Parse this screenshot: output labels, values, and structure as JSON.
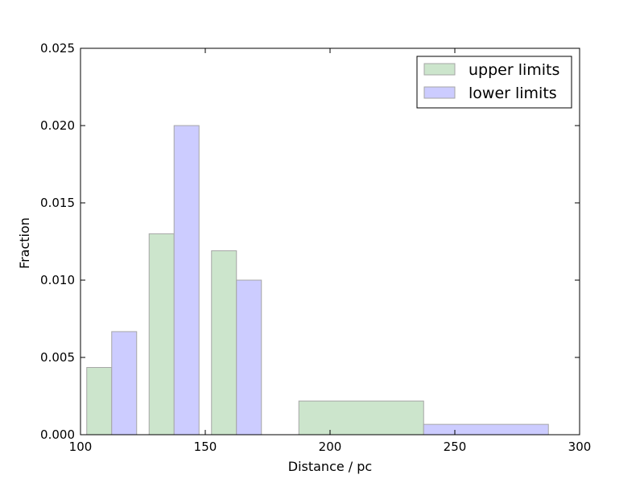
{
  "chart_data": {
    "type": "bar",
    "title": "",
    "xlabel": "Distance / pc",
    "ylabel": "Fraction",
    "xlim": [
      100,
      300
    ],
    "ylim": [
      0,
      0.025
    ],
    "xticks": [
      100,
      150,
      200,
      250,
      300
    ],
    "yticks": [
      0.0,
      0.005,
      0.01,
      0.015,
      0.02,
      0.025
    ],
    "xtick_labels": [
      "100",
      "150",
      "200",
      "250",
      "300"
    ],
    "ytick_labels": [
      "0.000",
      "0.005",
      "0.010",
      "0.015",
      "0.020",
      "0.025"
    ],
    "grid": false,
    "legend_position": "top-right",
    "series": [
      {
        "name": "upper limits",
        "color": "#cce5cc",
        "bins": [
          {
            "x0": 102.5,
            "x1": 112.5,
            "value": 0.00435
          },
          {
            "x0": 127.5,
            "x1": 137.5,
            "value": 0.013
          },
          {
            "x0": 152.5,
            "x1": 162.5,
            "value": 0.0119
          },
          {
            "x0": 187.5,
            "x1": 237.5,
            "value": 0.00218
          }
        ]
      },
      {
        "name": "lower limits",
        "color": "#ccccff",
        "bins": [
          {
            "x0": 112.5,
            "x1": 122.5,
            "value": 0.00667
          },
          {
            "x0": 137.5,
            "x1": 147.5,
            "value": 0.02
          },
          {
            "x0": 162.5,
            "x1": 172.5,
            "value": 0.01
          },
          {
            "x0": 237.5,
            "x1": 287.5,
            "value": 0.00067
          }
        ]
      }
    ]
  }
}
